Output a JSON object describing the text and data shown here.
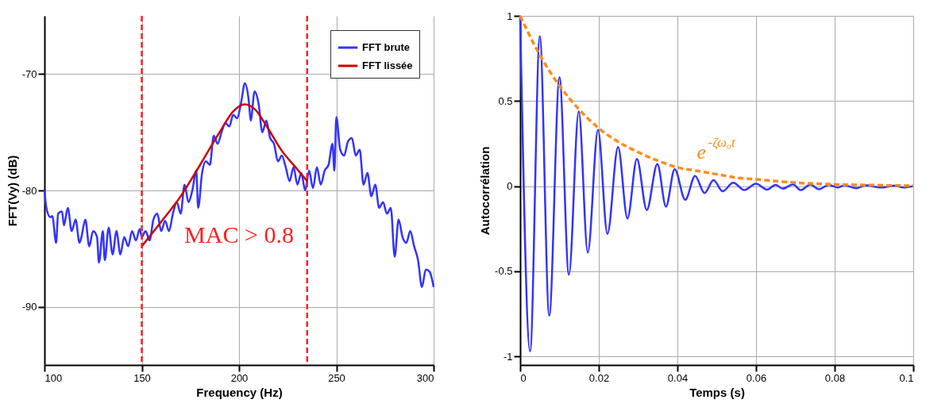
{
  "chart_data": [
    {
      "type": "line",
      "xlabel": "Frequency (Hz)",
      "ylabel": "FFT(Vy) (dB)",
      "xlim": [
        100,
        300
      ],
      "ylim": [
        -95,
        -65
      ],
      "xticks": [
        100,
        150,
        200,
        250,
        300
      ],
      "yticks": [
        -90,
        -80,
        -70
      ],
      "grid": true,
      "legend": "top right",
      "series": [
        {
          "name": "FFT brute",
          "color": "#3333ff",
          "x": [
            100,
            101,
            103,
            104,
            106,
            107,
            109,
            110,
            112,
            114,
            116,
            118,
            119,
            121,
            123,
            125,
            127,
            128,
            130,
            131,
            133,
            135,
            137,
            139,
            141,
            143,
            145,
            147,
            149,
            150,
            152,
            154,
            156,
            158,
            160,
            162,
            164,
            166,
            168,
            170,
            172,
            174,
            176,
            178,
            179,
            181,
            183,
            185,
            187,
            189,
            191,
            193,
            195,
            197,
            199,
            201,
            203,
            205,
            206,
            208,
            210,
            212,
            214,
            216,
            218,
            220,
            222,
            224,
            226,
            228,
            230,
            232,
            234,
            236,
            238,
            240,
            242,
            244,
            246,
            248,
            249,
            250,
            252,
            254,
            256,
            258,
            260,
            262,
            264,
            266,
            268,
            270,
            272,
            274,
            276,
            278,
            280,
            282,
            284,
            286,
            288,
            290,
            292,
            294,
            296,
            298,
            300
          ],
          "values": [
            -80,
            -81.5,
            -82.3,
            -82.2,
            -84.5,
            -82,
            -81.8,
            -83,
            -81.5,
            -83.5,
            -82.5,
            -84.5,
            -84,
            -82.5,
            -84.8,
            -83.5,
            -84,
            -86.2,
            -83.5,
            -86,
            -83.2,
            -85.5,
            -83.5,
            -85.5,
            -84,
            -84.8,
            -83.5,
            -84.3,
            -83.3,
            -84,
            -83.5,
            -84.3,
            -82.5,
            -82,
            -83.5,
            -82.6,
            -83.5,
            -82,
            -81,
            -82,
            -79.5,
            -81,
            -80,
            -78.3,
            -81.5,
            -78.5,
            -77.5,
            -77.8,
            -75.3,
            -76,
            -75,
            -74.2,
            -74.5,
            -73.5,
            -73.8,
            -72.5,
            -70.8,
            -72.3,
            -74,
            -71.5,
            -72.5,
            -75,
            -74,
            -75.5,
            -76,
            -77.5,
            -77,
            -78,
            -79.2,
            -78,
            -79.5,
            -78.5,
            -80,
            -78.3,
            -79.8,
            -78,
            -79.5,
            -78.3,
            -77.8,
            -76,
            -78.3,
            -73.7,
            -76.5,
            -77,
            -75.8,
            -75.5,
            -77,
            -76.5,
            -79.5,
            -78.5,
            -80.5,
            -79.5,
            -81.5,
            -81,
            -82,
            -81.5,
            -85.7,
            -82.5,
            -84,
            -84.5,
            -83.5,
            -84.8,
            -86,
            -88.3,
            -86.8,
            -87,
            -88.3
          ]
        },
        {
          "name": "FFT lissée",
          "color": "#cc0000",
          "x": [
            150,
            160,
            170,
            180,
            190,
            197,
            203,
            208,
            215,
            222,
            229,
            235
          ],
          "values": [
            -84.8,
            -82.7,
            -80.5,
            -77.8,
            -75,
            -73.2,
            -72.6,
            -73,
            -74.7,
            -76.6,
            -78,
            -79.2
          ]
        }
      ],
      "ref_lines": [
        {
          "axis": "x",
          "value": 150,
          "color": "#ff2020",
          "line_style": "dashed"
        },
        {
          "axis": "x",
          "value": 235,
          "color": "#ff2020",
          "line_style": "dashed"
        }
      ],
      "annotations": [
        "MAC > 0.8"
      ]
    },
    {
      "type": "line",
      "xlabel": "Temps (s)",
      "ylabel": "Autocorrélation",
      "xlim": [
        0,
        0.1
      ],
      "ylim": [
        -1.05,
        1
      ],
      "xticks": [
        0,
        0.02,
        0.04,
        0.06,
        0.08,
        0.1
      ],
      "yticks": [
        -1,
        -0.5,
        0,
        0.5,
        1
      ],
      "grid": true,
      "series": [
        {
          "color": "#3333ff",
          "x": [
            0,
            0.00253,
            0.005,
            0.0074,
            0.01,
            0.0124,
            0.0149,
            0.0172,
            0.0198,
            0.0222,
            0.0249,
            0.0273,
            0.0297,
            0.0322,
            0.0349,
            0.0371,
            0.0393,
            0.042,
            0.0445,
            0.0469,
            0.0492,
            0.0515,
            0.0542,
            0.057,
            0.06,
            0.0628,
            0.065,
            0.0668,
            0.0694,
            0.0714,
            0.0738,
            0.076,
            0.0785,
            0.0808,
            0.0825,
            0.0855,
            0.0878,
            0.0918,
            0.0952,
            0.0975,
            0.1
          ],
          "values": [
            1,
            -0.97,
            0.88,
            -0.76,
            0.64,
            -0.52,
            0.44,
            -0.39,
            0.33,
            -0.28,
            0.23,
            -0.19,
            0.16,
            -0.14,
            0.13,
            -0.12,
            0.1,
            -0.08,
            0.06,
            -0.04,
            0.035,
            -0.03,
            0.02,
            -0.023,
            0.015,
            -0.02,
            0.008,
            -0.015,
            0.01,
            -0.023,
            0.01,
            -0.018,
            0.008,
            -0.008,
            0.005,
            -0.012,
            0.005,
            -0.008,
            0.003,
            -0.008,
            0
          ]
        },
        {
          "name": "e$^{-ζω₀t}$",
          "color": "#ff8c1a",
          "line_style": "dashed",
          "x": [
            0,
            0.005,
            0.01,
            0.015,
            0.02,
            0.025,
            0.03,
            0.035,
            0.04,
            0.045,
            0.05,
            0.055,
            0.06,
            0.065,
            0.07,
            0.075,
            0.08,
            0.085,
            0.09,
            0.095,
            0.1
          ],
          "values": [
            1,
            0.77,
            0.59,
            0.45,
            0.34,
            0.26,
            0.2,
            0.15,
            0.11,
            0.09,
            0.07,
            0.05,
            0.04,
            0.03,
            0.02,
            0.015,
            0.01,
            0.008,
            0.006,
            0.004,
            0.003
          ]
        }
      ]
    }
  ]
}
